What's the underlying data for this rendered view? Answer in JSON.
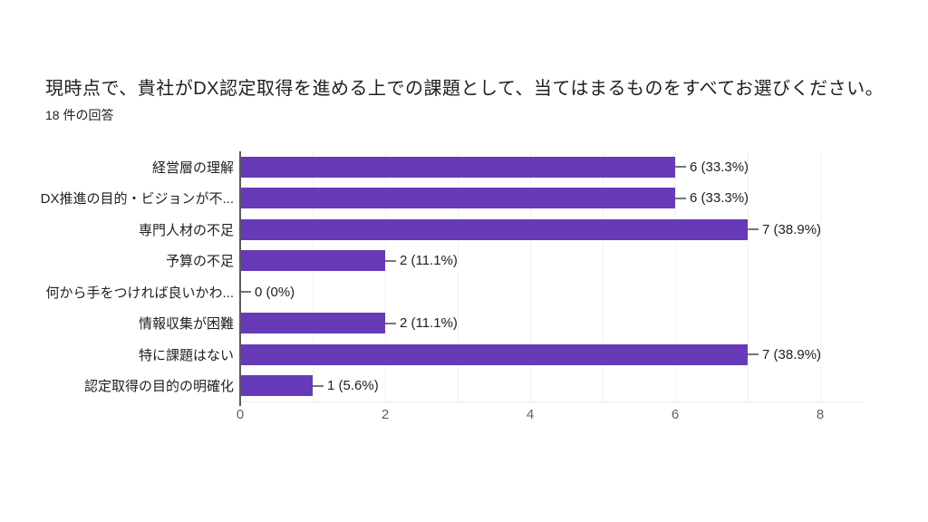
{
  "header": {
    "title": "現時点で、貴社がDX認定取得を進める上での課題として、当てはまるものをすべてお選びください。",
    "response_count": "18 件の回答"
  },
  "chart_data": {
    "type": "bar",
    "orientation": "horizontal",
    "title": "現時点で、貴社がDX認定取得を進める上での課題として、当てはまるものをすべてお選びください。",
    "subtitle": "18 件の回答",
    "categories": [
      "経営層の理解",
      "DX推進の目的・ビジョンが不...",
      "専門人材の不足",
      "予算の不足",
      "何から手をつければ良いかわ...",
      "情報収集が困難",
      "特に課題はない",
      "認定取得の目的の明確化"
    ],
    "values": [
      6,
      6,
      7,
      2,
      0,
      2,
      7,
      1
    ],
    "value_labels": [
      "6 (33.3%)",
      "6 (33.3%)",
      "7 (38.9%)",
      "2 (11.1%)",
      "0 (0%)",
      "2 (11.1%)",
      "7 (38.9%)",
      "1 (5.6%)"
    ],
    "x_ticks": [
      "0",
      "2",
      "4",
      "6",
      "8"
    ],
    "xlim": [
      0,
      8
    ],
    "grid": true,
    "legend_position": "none",
    "bar_color": "#673ab7",
    "axis_color": "#5b5b5b",
    "gridline_color": "#f1f1f1",
    "connector_color": "#757575",
    "tick_color": "#616161"
  }
}
